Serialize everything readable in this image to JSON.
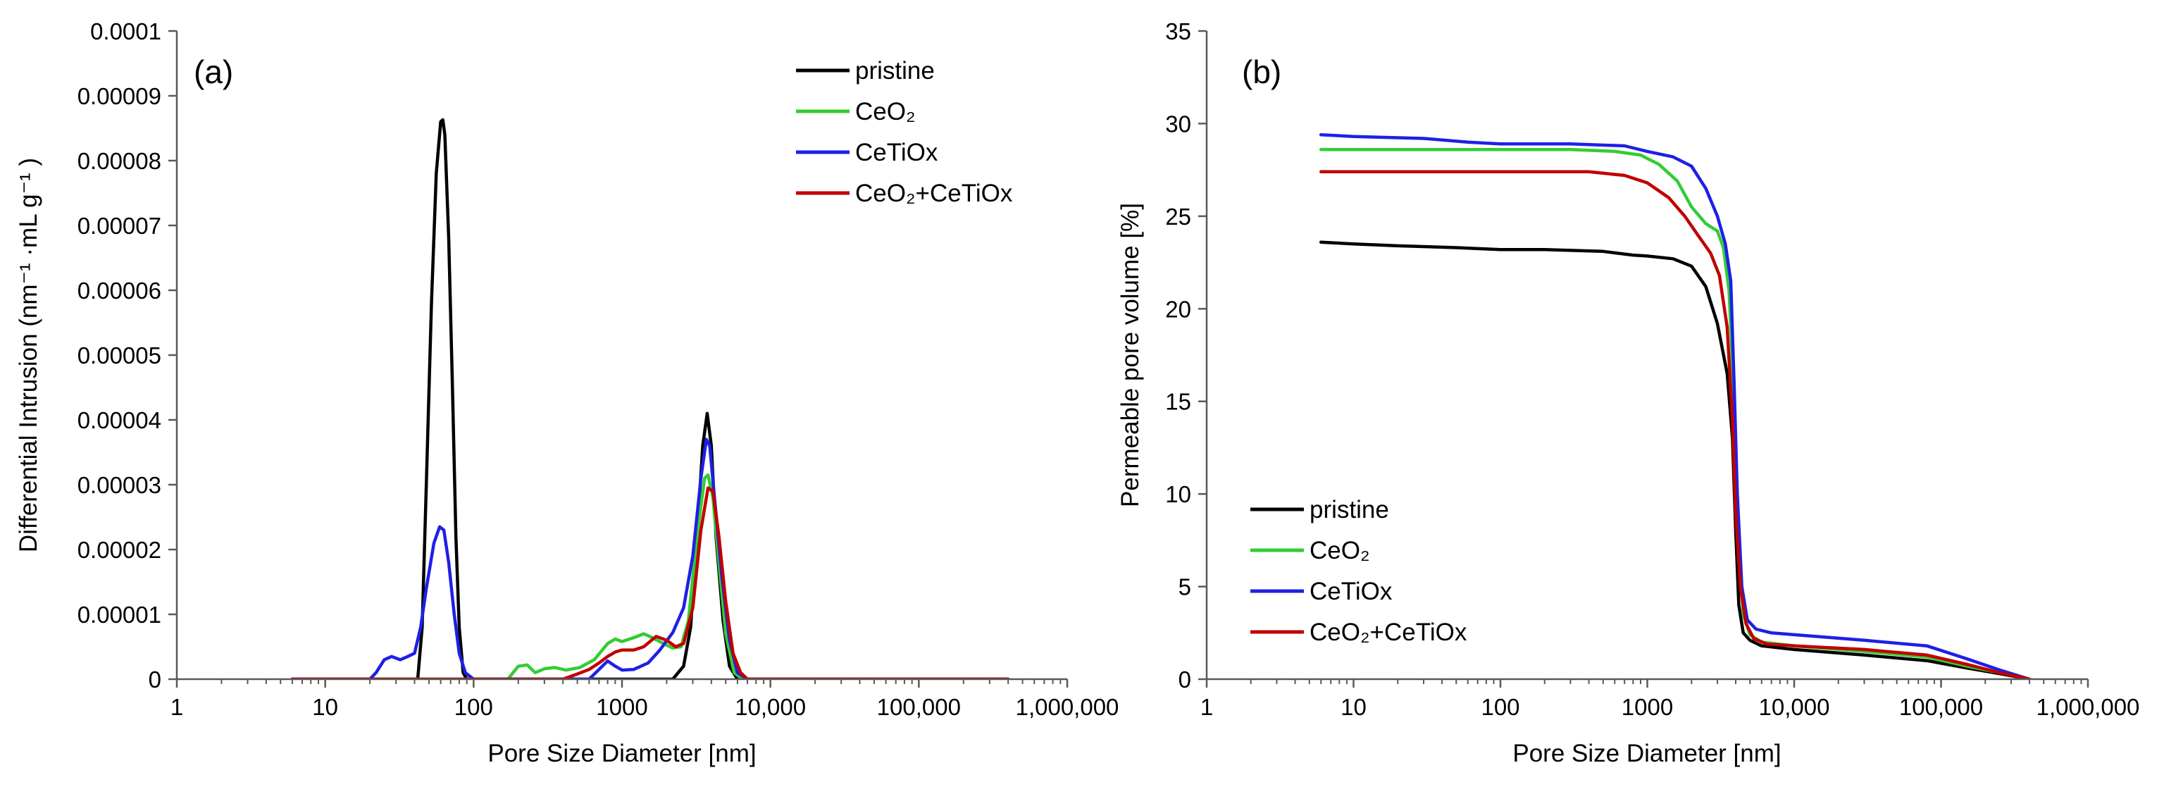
{
  "chart_data": [
    {
      "id": "a",
      "type": "line",
      "panel_label": "(a)",
      "title": "",
      "xlabel": "Pore Size Diameter [nm]",
      "ylabel": "Differential Intrusion (nm⁻¹ ·mL g⁻¹ )",
      "xscale": "log",
      "xlim": [
        1,
        1000000
      ],
      "ylim": [
        0,
        0.0001
      ],
      "x_tick_labels": [
        "1",
        "10",
        "100",
        "1000",
        "10,000",
        "100,000",
        "1,000,000"
      ],
      "y_tick_labels": [
        "0",
        "0.00001",
        "0.00002",
        "0.00003",
        "0.00004",
        "0.00005",
        "0.00006",
        "0.00007",
        "0.00008",
        "0.00009",
        "0.0001"
      ],
      "grid": false,
      "legend_position": "top-right",
      "series": [
        {
          "name": "pristine",
          "color": "#000000",
          "points": [
            [
              6,
              0
            ],
            [
              40,
              0
            ],
            [
              42,
              0
            ],
            [
              45,
              8e-06
            ],
            [
              48,
              3e-05
            ],
            [
              52,
              5.8e-05
            ],
            [
              56,
              7.8e-05
            ],
            [
              60,
              8.6e-05
            ],
            [
              62,
              8.63e-05
            ],
            [
              64,
              8.4e-05
            ],
            [
              68,
              6.8e-05
            ],
            [
              72,
              4.5e-05
            ],
            [
              76,
              2.2e-05
            ],
            [
              80,
              8e-06
            ],
            [
              85,
              1e-06
            ],
            [
              90,
              0
            ],
            [
              2200,
              0
            ],
            [
              2600,
              2e-06
            ],
            [
              2900,
              8e-06
            ],
            [
              3200,
              2.2e-05
            ],
            [
              3500,
              3.6e-05
            ],
            [
              3750,
              4.1e-05
            ],
            [
              4000,
              3.6e-05
            ],
            [
              4300,
              2.2e-05
            ],
            [
              4800,
              9e-06
            ],
            [
              5300,
              2e-06
            ],
            [
              6000,
              0
            ],
            [
              400000,
              0
            ]
          ]
        },
        {
          "name": "CeO₂",
          "color": "#33cc33",
          "points": [
            [
              6,
              0
            ],
            [
              170,
              0
            ],
            [
              200,
              2e-06
            ],
            [
              230,
              2.2e-06
            ],
            [
              260,
              1e-06
            ],
            [
              300,
              1.6e-06
            ],
            [
              350,
              1.8e-06
            ],
            [
              420,
              1.4e-06
            ],
            [
              520,
              1.8e-06
            ],
            [
              650,
              3e-06
            ],
            [
              800,
              5.5e-06
            ],
            [
              900,
              6.2e-06
            ],
            [
              1000,
              5.8e-06
            ],
            [
              1200,
              6.4e-06
            ],
            [
              1400,
              7e-06
            ],
            [
              1600,
              6.4e-06
            ],
            [
              1900,
              5.5e-06
            ],
            [
              2200,
              4.8e-06
            ],
            [
              2500,
              5e-06
            ],
            [
              2800,
              9e-06
            ],
            [
              3200,
              2.2e-05
            ],
            [
              3600,
              3.1e-05
            ],
            [
              3800,
              3.15e-05
            ],
            [
              4100,
              2.8e-05
            ],
            [
              4500,
              1.8e-05
            ],
            [
              5000,
              7e-06
            ],
            [
              5700,
              1e-06
            ],
            [
              6500,
              0
            ],
            [
              400000,
              0
            ]
          ]
        },
        {
          "name": "CeTiOx",
          "color": "#1f1fe6",
          "points": [
            [
              6,
              0
            ],
            [
              20,
              0
            ],
            [
              22,
              1e-06
            ],
            [
              25,
              3e-06
            ],
            [
              28,
              3.5e-06
            ],
            [
              32,
              3e-06
            ],
            [
              36,
              3.5e-06
            ],
            [
              40,
              4e-06
            ],
            [
              44,
              8e-06
            ],
            [
              48,
              1.4e-05
            ],
            [
              54,
              2.1e-05
            ],
            [
              59,
              2.35e-05
            ],
            [
              63,
              2.3e-05
            ],
            [
              68,
              1.8e-05
            ],
            [
              74,
              1e-05
            ],
            [
              80,
              4e-06
            ],
            [
              88,
              1e-06
            ],
            [
              100,
              0
            ],
            [
              600,
              0
            ],
            [
              700,
              1.5e-06
            ],
            [
              800,
              2.8e-06
            ],
            [
              900,
              2e-06
            ],
            [
              1000,
              1.4e-06
            ],
            [
              1200,
              1.5e-06
            ],
            [
              1500,
              2.5e-06
            ],
            [
              1800,
              4.5e-06
            ],
            [
              2200,
              7.2e-06
            ],
            [
              2600,
              1.1e-05
            ],
            [
              3000,
              1.9e-05
            ],
            [
              3400,
              3.1e-05
            ],
            [
              3700,
              3.7e-05
            ],
            [
              3900,
              3.6e-05
            ],
            [
              4200,
              2.8e-05
            ],
            [
              4700,
              1.6e-05
            ],
            [
              5300,
              6e-06
            ],
            [
              6000,
              1e-06
            ],
            [
              7000,
              0
            ],
            [
              400000,
              0
            ]
          ]
        },
        {
          "name": "CeO₂+CeTiOx",
          "color": "#c00000",
          "points": [
            [
              6,
              0
            ],
            [
              400,
              0
            ],
            [
              500,
              8e-07
            ],
            [
              600,
              1.5e-06
            ],
            [
              700,
              2.5e-06
            ],
            [
              800,
              3.5e-06
            ],
            [
              900,
              4.2e-06
            ],
            [
              1000,
              4.5e-06
            ],
            [
              1200,
              4.5e-06
            ],
            [
              1400,
              5e-06
            ],
            [
              1700,
              6.6e-06
            ],
            [
              2000,
              6e-06
            ],
            [
              2300,
              5e-06
            ],
            [
              2600,
              5.5e-06
            ],
            [
              3000,
              1.1e-05
            ],
            [
              3400,
              2.3e-05
            ],
            [
              3800,
              2.95e-05
            ],
            [
              4100,
              2.9e-05
            ],
            [
              4500,
              2.2e-05
            ],
            [
              5000,
              1.2e-05
            ],
            [
              5600,
              4e-06
            ],
            [
              6300,
              1e-06
            ],
            [
              7000,
              0
            ],
            [
              400000,
              0
            ]
          ]
        }
      ]
    },
    {
      "id": "b",
      "type": "line",
      "panel_label": "(b)",
      "title": "",
      "xlabel": "Pore Size Diameter [nm]",
      "ylabel": "Permeable pore volume [%]",
      "xscale": "log",
      "xlim": [
        1,
        1000000
      ],
      "ylim": [
        0,
        35
      ],
      "x_tick_labels": [
        "1",
        "10",
        "100",
        "1000",
        "10,000",
        "100,000",
        "1,000,000"
      ],
      "y_tick_labels": [
        "0",
        "5",
        "10",
        "15",
        "20",
        "25",
        "30",
        "35"
      ],
      "grid": false,
      "legend_position": "bottom-left",
      "series": [
        {
          "name": "pristine",
          "color": "#000000",
          "points": [
            [
              6,
              23.6
            ],
            [
              10,
              23.5
            ],
            [
              20,
              23.4
            ],
            [
              50,
              23.3
            ],
            [
              100,
              23.2
            ],
            [
              200,
              23.2
            ],
            [
              500,
              23.1
            ],
            [
              800,
              22.9
            ],
            [
              1000,
              22.85
            ],
            [
              1500,
              22.7
            ],
            [
              2000,
              22.3
            ],
            [
              2500,
              21.2
            ],
            [
              3000,
              19.2
            ],
            [
              3500,
              16.5
            ],
            [
              3800,
              13
            ],
            [
              4000,
              8
            ],
            [
              4200,
              4
            ],
            [
              4500,
              2.5
            ],
            [
              5000,
              2.1
            ],
            [
              6000,
              1.8
            ],
            [
              10000,
              1.6
            ],
            [
              30000,
              1.3
            ],
            [
              80000,
              1.0
            ],
            [
              150000,
              0.6
            ],
            [
              250000,
              0.3
            ],
            [
              400000,
              0
            ]
          ]
        },
        {
          "name": "CeO₂",
          "color": "#33cc33",
          "points": [
            [
              6,
              28.6
            ],
            [
              20,
              28.6
            ],
            [
              100,
              28.6
            ],
            [
              300,
              28.6
            ],
            [
              600,
              28.5
            ],
            [
              900,
              28.3
            ],
            [
              1200,
              27.8
            ],
            [
              1600,
              26.9
            ],
            [
              2000,
              25.5
            ],
            [
              2500,
              24.6
            ],
            [
              3000,
              24.2
            ],
            [
              3300,
              23.3
            ],
            [
              3600,
              21
            ],
            [
              3800,
              17
            ],
            [
              4000,
              12
            ],
            [
              4200,
              7
            ],
            [
              4500,
              3.5
            ],
            [
              5000,
              2.4
            ],
            [
              6000,
              2.0
            ],
            [
              10000,
              1.8
            ],
            [
              30000,
              1.5
            ],
            [
              80000,
              1.2
            ],
            [
              150000,
              0.7
            ],
            [
              250000,
              0.35
            ],
            [
              400000,
              0
            ]
          ]
        },
        {
          "name": "CeTiOx",
          "color": "#1f1fe6",
          "points": [
            [
              6,
              29.4
            ],
            [
              10,
              29.3
            ],
            [
              30,
              29.2
            ],
            [
              60,
              29.0
            ],
            [
              100,
              28.9
            ],
            [
              300,
              28.9
            ],
            [
              700,
              28.8
            ],
            [
              1000,
              28.5
            ],
            [
              1500,
              28.2
            ],
            [
              2000,
              27.7
            ],
            [
              2500,
              26.5
            ],
            [
              3000,
              25.0
            ],
            [
              3400,
              23.5
            ],
            [
              3700,
              21.5
            ],
            [
              3900,
              16
            ],
            [
              4100,
              10
            ],
            [
              4400,
              5
            ],
            [
              4800,
              3.2
            ],
            [
              5500,
              2.7
            ],
            [
              7000,
              2.5
            ],
            [
              10000,
              2.4
            ],
            [
              30000,
              2.1
            ],
            [
              80000,
              1.8
            ],
            [
              150000,
              1.1
            ],
            [
              250000,
              0.5
            ],
            [
              400000,
              0
            ]
          ]
        },
        {
          "name": "CeO₂+CeTiOx",
          "color": "#c00000",
          "points": [
            [
              6,
              27.4
            ],
            [
              20,
              27.4
            ],
            [
              100,
              27.4
            ],
            [
              400,
              27.4
            ],
            [
              700,
              27.2
            ],
            [
              1000,
              26.8
            ],
            [
              1400,
              26.0
            ],
            [
              1800,
              25.0
            ],
            [
              2200,
              24.0
            ],
            [
              2700,
              23.0
            ],
            [
              3100,
              21.8
            ],
            [
              3500,
              19
            ],
            [
              3800,
              14
            ],
            [
              4000,
              9
            ],
            [
              4300,
              5
            ],
            [
              4700,
              3
            ],
            [
              5300,
              2.2
            ],
            [
              6500,
              1.9
            ],
            [
              10000,
              1.8
            ],
            [
              30000,
              1.6
            ],
            [
              80000,
              1.3
            ],
            [
              150000,
              0.8
            ],
            [
              250000,
              0.35
            ],
            [
              400000,
              0
            ]
          ]
        }
      ]
    }
  ]
}
